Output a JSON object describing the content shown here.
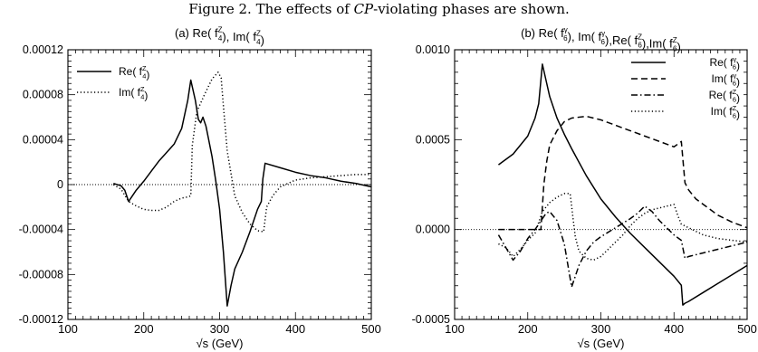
{
  "figure": {
    "caption_prefix": "Figure 2.    The effects of ",
    "caption_emph": "CP",
    "caption_suffix": "-violating phases are shown."
  },
  "chart_data": [
    {
      "type": "line",
      "title_parts": [
        {
          "t": "(a) Re( f"
        },
        {
          "sub": "4",
          "sup": "Z"
        },
        {
          "t": "), Im( f"
        },
        {
          "sub": "4",
          "sup": "Z"
        },
        {
          "t": ")"
        }
      ],
      "xlabel": "√s (GeV)",
      "xlim": [
        100,
        500
      ],
      "ylim": [
        -0.00012,
        0.00012
      ],
      "x_ticks": [
        100,
        200,
        300,
        400,
        500
      ],
      "x_tick_labels": [
        "100",
        "200",
        "300",
        "400",
        "500"
      ],
      "y_ticks": [
        -0.00012,
        -8e-05,
        -4e-05,
        0,
        4e-05,
        8e-05,
        0.00012
      ],
      "y_tick_labels": [
        "-0.00012",
        "-0.00008",
        "-0.00004",
        "0",
        "0.00004",
        "0.00008",
        "0.00012"
      ],
      "zero_line": true,
      "legend_position": "top-left",
      "series": [
        {
          "legend_parts": [
            {
              "t": "Re( f"
            },
            {
              "sub": "4",
              "sup": "Z"
            },
            {
              "t": ")"
            }
          ],
          "dash": "solid",
          "x": [
            160,
            170,
            175,
            180,
            185,
            190,
            200,
            210,
            220,
            228,
            232,
            240,
            250,
            258,
            262,
            268,
            272,
            275,
            278,
            282,
            285,
            290,
            295,
            300,
            305,
            310,
            315,
            320,
            330,
            340,
            350,
            355,
            357,
            360,
            380,
            400,
            420,
            440,
            460,
            480,
            500
          ],
          "y": [
            1e-06,
            -1e-06,
            -5e-06,
            -1.5e-05,
            -1e-05,
            -5e-06,
            3e-06,
            1.2e-05,
            2.1e-05,
            2.7e-05,
            3e-05,
            3.6e-05,
            5e-05,
            7.5e-05,
            9.3e-05,
            7.5e-05,
            5.8e-05,
            5.5e-05,
            6e-05,
            5.2e-05,
            4.2e-05,
            2.5e-05,
            3e-06,
            -2.2e-05,
            -6e-05,
            -0.000108,
            -9e-05,
            -7.5e-05,
            -6e-05,
            -4.2e-05,
            -2.2e-05,
            -1.5e-05,
            5e-06,
            1.9e-05,
            1.5e-05,
            1.1e-05,
            8e-06,
            6e-06,
            3e-06,
            1e-06,
            -2e-06
          ]
        },
        {
          "legend_parts": [
            {
              "t": "Im( f"
            },
            {
              "sub": "4",
              "sup": "Z"
            },
            {
              "t": ")"
            }
          ],
          "dash": "dotted",
          "x": [
            160,
            170,
            180,
            190,
            200,
            210,
            220,
            230,
            240,
            250,
            258,
            262,
            264,
            270,
            280,
            290,
            298,
            302,
            305,
            310,
            320,
            330,
            340,
            350,
            358,
            362,
            370,
            380,
            400,
            420,
            440,
            460,
            480,
            500
          ],
          "y": [
            0,
            -4e-06,
            -1.5e-05,
            -1.9e-05,
            -2.2e-05,
            -2.3e-05,
            -2.3e-05,
            -2e-05,
            -1.5e-05,
            -1.2e-05,
            -1.1e-05,
            -1e-05,
            3.5e-05,
            6.5e-05,
            8e-05,
            9.4e-05,
            0.0001,
            9.5e-05,
            7e-05,
            3e-05,
            -1e-05,
            -2.5e-05,
            -3.5e-05,
            -4.1e-05,
            -4.2e-05,
            -2e-05,
            -1e-05,
            -2e-06,
            4e-06,
            6e-06,
            7e-06,
            8e-06,
            9e-06,
            9e-06
          ]
        }
      ]
    },
    {
      "type": "line",
      "title_parts": [
        {
          "t": "(b) Re( f"
        },
        {
          "sub": "6",
          "sup": "γ"
        },
        {
          "t": "), Im( f"
        },
        {
          "sub": "6",
          "sup": "γ"
        },
        {
          "t": "),Re( f"
        },
        {
          "sub": "6",
          "sup": "Z"
        },
        {
          "t": "),Im( f"
        },
        {
          "sub": "6",
          "sup": "Z"
        },
        {
          "t": ")"
        }
      ],
      "xlabel": "√s (GeV)",
      "xlim": [
        100,
        500
      ],
      "ylim": [
        -0.0005,
        0.001
      ],
      "x_ticks": [
        100,
        200,
        300,
        400,
        500
      ],
      "x_tick_labels": [
        "100",
        "200",
        "300",
        "400",
        "500"
      ],
      "y_ticks": [
        -0.0005,
        0,
        0.0005,
        0.001
      ],
      "y_tick_labels": [
        "-0.0005",
        "0.0000",
        "0.0005",
        "0.0010"
      ],
      "zero_line": true,
      "legend_position": "top-right",
      "series": [
        {
          "legend_parts": [
            {
              "t": "Re( f"
            },
            {
              "sub": "6",
              "sup": "γ"
            },
            {
              "t": ")"
            }
          ],
          "dash": "solid",
          "x": [
            160,
            180,
            200,
            210,
            215,
            220,
            225,
            230,
            240,
            250,
            260,
            280,
            300,
            320,
            340,
            360,
            380,
            400,
            410,
            412,
            415,
            420,
            440,
            460,
            480,
            500
          ],
          "y": [
            0.00036,
            0.00042,
            0.00052,
            0.00062,
            0.0007,
            0.00092,
            0.00083,
            0.00074,
            0.00062,
            0.00053,
            0.00045,
            0.0003,
            0.00017,
            7e-05,
            -2e-05,
            -0.0001,
            -0.00018,
            -0.00026,
            -0.00031,
            -0.00042,
            -0.00041,
            -0.0004,
            -0.00035,
            -0.0003,
            -0.00025,
            -0.0002
          ]
        },
        {
          "legend_parts": [
            {
              "t": "Im( f"
            },
            {
              "sub": "6",
              "sup": "γ"
            },
            {
              "t": ")"
            }
          ],
          "dash": "dashed",
          "x": [
            160,
            180,
            200,
            210,
            218,
            222,
            226,
            230,
            240,
            250,
            260,
            280,
            300,
            320,
            340,
            360,
            380,
            400,
            410,
            415,
            420,
            430,
            440,
            460,
            480,
            500
          ],
          "y": [
            0,
            0,
            0,
            0,
            0,
            0.00025,
            0.00038,
            0.00047,
            0.00055,
            0.0006,
            0.00062,
            0.00063,
            0.00061,
            0.00058,
            0.00055,
            0.00052,
            0.00049,
            0.00046,
            0.00049,
            0.00026,
            0.00022,
            0.00017,
            0.00014,
            8e-05,
            4e-05,
            1e-05
          ]
        },
        {
          "legend_parts": [
            {
              "t": "Re( f"
            },
            {
              "sub": "6",
              "sup": "Z"
            },
            {
              "t": ")"
            }
          ],
          "dash": "dashdot",
          "x": [
            160,
            170,
            180,
            190,
            200,
            210,
            220,
            225,
            230,
            240,
            250,
            255,
            260,
            265,
            270,
            280,
            290,
            300,
            320,
            340,
            350,
            360,
            370,
            380,
            390,
            400,
            410,
            415,
            420,
            440,
            460,
            480,
            500
          ],
          "y": [
            -3e-05,
            -0.0001,
            -0.00017,
            -0.00012,
            -5e-05,
            0,
            6e-05,
            9e-05,
            0.0001,
            5e-05,
            -8e-05,
            -0.0002,
            -0.00032,
            -0.00026,
            -0.0002,
            -0.00012,
            -7e-05,
            -4e-05,
            1e-05,
            6e-05,
            9e-05,
            0.00013,
            0.0001,
            5e-05,
            1e-05,
            -3e-05,
            -6e-05,
            -0.00016,
            -0.00015,
            -0.00013,
            -0.00011,
            -9e-05,
            -7e-05
          ]
        },
        {
          "legend_parts": [
            {
              "t": "Im( f"
            },
            {
              "sub": "6",
              "sup": "Z"
            },
            {
              "t": ")"
            }
          ],
          "dash": "dotted",
          "x": [
            160,
            170,
            180,
            190,
            200,
            210,
            220,
            230,
            240,
            250,
            258,
            262,
            265,
            270,
            280,
            290,
            300,
            310,
            320,
            330,
            340,
            350,
            360,
            370,
            380,
            390,
            400,
            405,
            410,
            420,
            440,
            460,
            480,
            500
          ],
          "y": [
            -8e-05,
            -0.0001,
            -0.00015,
            -0.00011,
            -6e-05,
            -2e-05,
            0.0001,
            0.00015,
            0.00018,
            0.0002,
            0.0002,
            6e-05,
            -4e-05,
            -0.00012,
            -0.00016,
            -0.00017,
            -0.00015,
            -0.00011,
            -7e-05,
            -3e-05,
            2e-05,
            6e-05,
            9e-05,
            0.00011,
            0.00012,
            0.00013,
            0.00014,
            8e-05,
            3e-05,
            1e-05,
            -3e-05,
            -5e-05,
            -6e-05,
            -7e-05
          ]
        }
      ]
    }
  ]
}
